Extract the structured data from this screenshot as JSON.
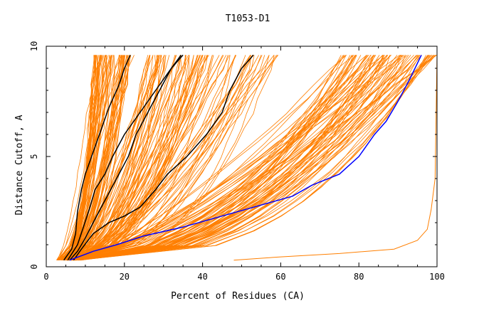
{
  "chart_data": {
    "type": "line",
    "title": "T1053-D1",
    "xlabel": "Percent of Residues (CA)",
    "ylabel": "Distance Cutoff, A",
    "xlim": [
      0,
      100
    ],
    "ylim": [
      0,
      10
    ],
    "x_ticks": [
      0,
      20,
      40,
      60,
      80,
      100
    ],
    "y_ticks": [
      0,
      5,
      10
    ],
    "grid": false,
    "legend": "none",
    "colors": {
      "background_models": "#ff7f00",
      "black_models": "#000000",
      "blue_model": "#0000ff",
      "frame": "#000000"
    },
    "background_generation": {
      "count": 240,
      "seed": 1053,
      "note_values": "orange family of model curves rendered procedurally between the bands below"
    },
    "background_bands": [
      {
        "name": "steep group",
        "x_at_0_3": [
          2.5,
          6
        ],
        "x_at_9_6": [
          12,
          22
        ],
        "weight": 0.25
      },
      {
        "name": "middle group",
        "x_at_0_3": [
          4,
          8
        ],
        "x_at_9_6": [
          25,
          60
        ],
        "weight": 0.35
      },
      {
        "name": "lower group",
        "x_at_0_3": [
          5,
          9
        ],
        "x_at_9_6": [
          75,
          100
        ],
        "weight": 0.4
      }
    ],
    "outlier_series": {
      "name": "",
      "color": "#ff7f00",
      "points": [
        [
          48,
          0.3
        ],
        [
          60,
          0.45
        ],
        [
          75,
          0.6
        ],
        [
          89,
          0.8
        ],
        [
          95,
          1.2
        ],
        [
          97.5,
          1.7
        ],
        [
          98.5,
          2.6
        ],
        [
          99.5,
          4.0
        ],
        [
          100,
          9.6
        ]
      ]
    },
    "series": [
      {
        "name": "",
        "color": "#000000",
        "points": [
          [
            4.5,
            0.3
          ],
          [
            6.5,
            0.8
          ],
          [
            7.5,
            1.5
          ],
          [
            8,
            2.5
          ],
          [
            9,
            3.5
          ],
          [
            10,
            4.2
          ],
          [
            12,
            5.2
          ],
          [
            14,
            6.2
          ],
          [
            16,
            7.2
          ],
          [
            18.5,
            8.2
          ],
          [
            20,
            9.0
          ],
          [
            21.5,
            9.6
          ]
        ]
      },
      {
        "name": "",
        "color": "#000000",
        "points": [
          [
            5.5,
            0.3
          ],
          [
            8,
            1.0
          ],
          [
            9.5,
            1.8
          ],
          [
            11,
            2.6
          ],
          [
            12.5,
            3.5
          ],
          [
            15,
            4.2
          ],
          [
            17,
            5.0
          ],
          [
            20,
            6.0
          ],
          [
            24,
            7.0
          ],
          [
            28,
            8.0
          ],
          [
            32,
            9.0
          ],
          [
            35,
            9.6
          ]
        ]
      },
      {
        "name": "",
        "color": "#000000",
        "points": [
          [
            6,
            0.3
          ],
          [
            8,
            0.7
          ],
          [
            10,
            1.3
          ],
          [
            12,
            2.0
          ],
          [
            15,
            3.0
          ],
          [
            18,
            4.0
          ],
          [
            21,
            5.0
          ],
          [
            23,
            6.0
          ],
          [
            26,
            7.0
          ],
          [
            29,
            8.0
          ],
          [
            32,
            9.0
          ],
          [
            34.5,
            9.6
          ]
        ]
      },
      {
        "name": "",
        "color": "#000000",
        "points": [
          [
            7,
            0.3
          ],
          [
            9,
            0.8
          ],
          [
            12,
            1.5
          ],
          [
            16,
            2.0
          ],
          [
            20,
            2.3
          ],
          [
            24,
            2.7
          ],
          [
            28,
            3.5
          ],
          [
            31,
            4.2
          ],
          [
            36,
            5.0
          ],
          [
            41,
            6.0
          ],
          [
            45,
            7.0
          ],
          [
            47,
            8.0
          ],
          [
            50,
            9.0
          ],
          [
            53,
            9.6
          ]
        ]
      },
      {
        "name": "",
        "color": "#0000ff",
        "points": [
          [
            6,
            0.3
          ],
          [
            12,
            0.7
          ],
          [
            18,
            1.0
          ],
          [
            25,
            1.4
          ],
          [
            35,
            1.8
          ],
          [
            45,
            2.3
          ],
          [
            55,
            2.8
          ],
          [
            63,
            3.2
          ],
          [
            68,
            3.7
          ],
          [
            75,
            4.2
          ],
          [
            80,
            5.0
          ],
          [
            84,
            6.0
          ],
          [
            87,
            6.6
          ],
          [
            90,
            7.5
          ],
          [
            93,
            8.5
          ],
          [
            96,
            9.6
          ]
        ]
      }
    ]
  }
}
